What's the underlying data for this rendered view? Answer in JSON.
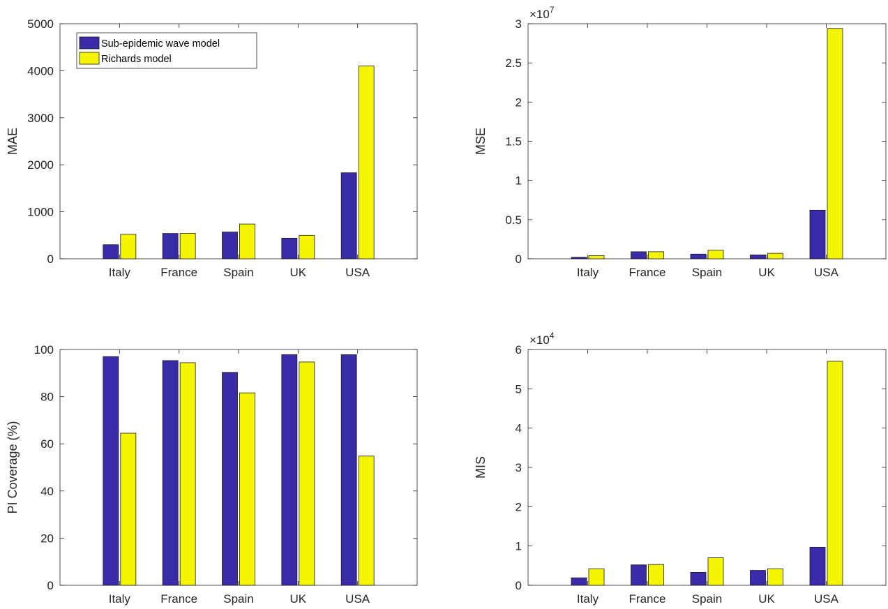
{
  "colors": {
    "series_1": "#3a2ca8",
    "series_2": "#f6f500"
  },
  "chart_data": [
    {
      "type": "bar",
      "ylabel": "MAE",
      "exponent": "",
      "categories": [
        "Italy",
        "France",
        "Spain",
        "UK",
        "USA"
      ],
      "ylim": [
        0,
        5000
      ],
      "yticks": [
        "0",
        "1000",
        "2000",
        "3000",
        "4000",
        "5000"
      ],
      "series": [
        {
          "name": "Sub-epidemic wave model",
          "values": [
            300,
            540,
            570,
            440,
            1830
          ]
        },
        {
          "name": "Richards model",
          "values": [
            520,
            540,
            740,
            500,
            4100
          ]
        }
      ],
      "legend": "top-left"
    },
    {
      "type": "bar",
      "ylabel": "MSE",
      "exponent": "7",
      "categories": [
        "Italy",
        "France",
        "Spain",
        "UK",
        "USA"
      ],
      "ylim": [
        0,
        3
      ],
      "yticks": [
        "0",
        "0.5",
        "1",
        "1.5",
        "2",
        "2.5",
        "3"
      ],
      "series": [
        {
          "name": "Sub-epidemic wave model",
          "values": [
            0.02,
            0.09,
            0.06,
            0.05,
            0.62
          ]
        },
        {
          "name": "Richards model",
          "values": [
            0.04,
            0.09,
            0.11,
            0.07,
            2.94
          ]
        }
      ]
    },
    {
      "type": "bar",
      "ylabel": "PI Coverage (%)",
      "exponent": "",
      "categories": [
        "Italy",
        "France",
        "Spain",
        "UK",
        "USA"
      ],
      "ylim": [
        0,
        100
      ],
      "yticks": [
        "0",
        "20",
        "40",
        "60",
        "80",
        "100"
      ],
      "series": [
        {
          "name": "Sub-epidemic wave model",
          "values": [
            97,
            95.3,
            90.3,
            97.8,
            97.8
          ]
        },
        {
          "name": "Richards model",
          "values": [
            64.5,
            94.4,
            81.6,
            94.7,
            54.8
          ]
        }
      ]
    },
    {
      "type": "bar",
      "ylabel": "MIS",
      "exponent": "4",
      "categories": [
        "Italy",
        "France",
        "Spain",
        "UK",
        "USA"
      ],
      "ylim": [
        0,
        6
      ],
      "yticks": [
        "0",
        "1",
        "2",
        "3",
        "4",
        "5",
        "6"
      ],
      "series": [
        {
          "name": "Sub-epidemic wave model",
          "values": [
            0.19,
            0.52,
            0.33,
            0.38,
            0.97
          ]
        },
        {
          "name": "Richards model",
          "values": [
            0.42,
            0.53,
            0.7,
            0.42,
            5.7
          ]
        }
      ]
    }
  ]
}
